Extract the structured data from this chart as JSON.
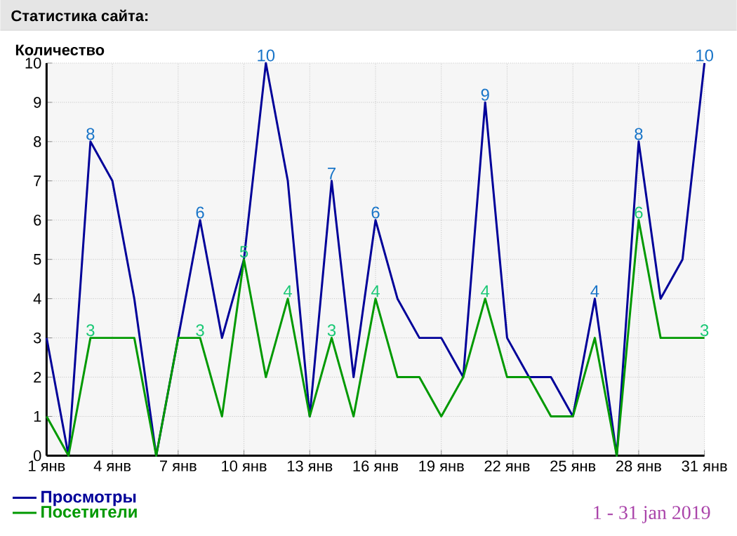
{
  "chart_data": {
    "type": "line",
    "title": "Статистика сайта:",
    "ylabel": "Количество",
    "annotations": [
      "1 - 31 jan 2019"
    ],
    "x": [
      1,
      2,
      3,
      4,
      5,
      6,
      7,
      8,
      9,
      10,
      11,
      12,
      13,
      14,
      15,
      16,
      17,
      18,
      19,
      20,
      21,
      22,
      23,
      24,
      25,
      26,
      27,
      28,
      29,
      30,
      31
    ],
    "xlim": [
      1,
      31
    ],
    "xticks": [
      {
        "value": 1,
        "label": "1 янв"
      },
      {
        "value": 4,
        "label": "4 янв"
      },
      {
        "value": 7,
        "label": "7 янв"
      },
      {
        "value": 10,
        "label": "10 янв"
      },
      {
        "value": 13,
        "label": "13 янв"
      },
      {
        "value": 16,
        "label": "16 янв"
      },
      {
        "value": 19,
        "label": "19 янв"
      },
      {
        "value": 22,
        "label": "22 янв"
      },
      {
        "value": 25,
        "label": "25 янв"
      },
      {
        "value": 28,
        "label": "28 янв"
      },
      {
        "value": 31,
        "label": "31 янв"
      }
    ],
    "ylim": [
      0,
      10
    ],
    "yticks": [
      0,
      1,
      2,
      3,
      4,
      5,
      6,
      7,
      8,
      9,
      10
    ],
    "grid": true,
    "legend": "bottom left",
    "marker": "none",
    "line_style": "solid",
    "series": [
      {
        "name": "Просмотры",
        "color": "#000099",
        "values": [
          3,
          0,
          8,
          7,
          4,
          0,
          3,
          6,
          3,
          5,
          10,
          7,
          1,
          7,
          2,
          6,
          4,
          3,
          3,
          2,
          9,
          3,
          2,
          2,
          1,
          4,
          0,
          8,
          4,
          5,
          10
        ],
        "value_labels": [
          null,
          null,
          "8",
          null,
          null,
          null,
          null,
          "6",
          null,
          null,
          "10",
          null,
          null,
          "7",
          null,
          "6",
          null,
          null,
          null,
          null,
          "9",
          null,
          null,
          null,
          null,
          "4",
          null,
          "8",
          null,
          null,
          "10"
        ]
      },
      {
        "name": "Посетители",
        "color": "#009900",
        "values": [
          1,
          0,
          3,
          3,
          3,
          0,
          3,
          3,
          1,
          5,
          2,
          4,
          1,
          3,
          1,
          4,
          2,
          2,
          1,
          2,
          4,
          2,
          2,
          1,
          1,
          3,
          0,
          6,
          3,
          3,
          3
        ],
        "value_labels": [
          null,
          null,
          "3",
          null,
          null,
          null,
          null,
          "3",
          null,
          "5",
          null,
          "4",
          null,
          "3",
          null,
          "4",
          null,
          null,
          null,
          null,
          "4",
          null,
          null,
          null,
          null,
          null,
          null,
          "6",
          null,
          null,
          "3"
        ]
      }
    ]
  }
}
